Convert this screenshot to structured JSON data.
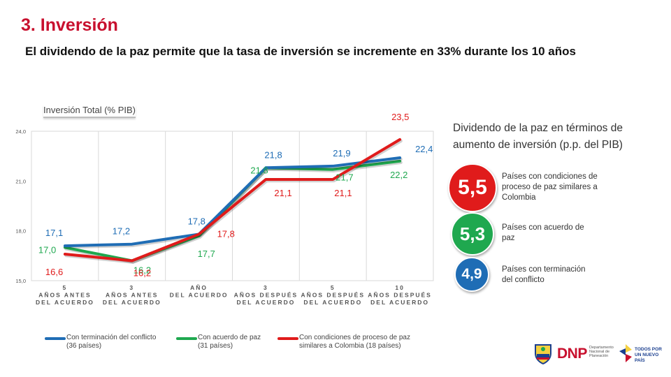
{
  "header": {
    "title": "3. Inversión",
    "subtitle": "El dividendo de la paz permite que la tasa de inversión se incremente en 33% durante los 10 años"
  },
  "chart_label": "Inversión Total (% PIB)",
  "chart_data": {
    "type": "line",
    "categories": [
      [
        "5",
        "AÑOS ANTES",
        "DEL ACUERDO"
      ],
      [
        "3",
        "AÑOS ANTES",
        "DEL ACUERDO"
      ],
      [
        "AÑO",
        "DEL ACUERDO"
      ],
      [
        "3",
        "AÑOS DESPUÉS",
        "DEL ACUERDO"
      ],
      [
        "5",
        "AÑOS DESPUÉS",
        "DEL ACUERDO"
      ],
      [
        "10",
        "AÑOS DESPUÉS",
        "DEL ACUERDO"
      ]
    ],
    "ylim": [
      15.0,
      24.0
    ],
    "yticks": [
      "15,0",
      "18,0",
      "21,0",
      "24,0"
    ],
    "series": [
      {
        "name": "Con terminación del conflicto (36 países)",
        "color": "#1f6db5",
        "values": [
          17.1,
          17.2,
          17.8,
          21.8,
          21.9,
          22.4
        ],
        "labels": [
          "17,1",
          "17,2",
          "17,8",
          "21,8",
          "21,9",
          "22,4"
        ]
      },
      {
        "name": "Con acuerdo de paz (31 países)",
        "color": "#1fa84f",
        "values": [
          17.0,
          16.2,
          17.7,
          21.8,
          21.7,
          22.2
        ],
        "labels": [
          "17,0",
          "16,2",
          "17,7",
          "21,8",
          "21,7",
          "22,2"
        ]
      },
      {
        "name": "Con condiciones de proceso de paz similares a Colombia (18 países)",
        "color": "#e01b1b",
        "values": [
          16.6,
          16.2,
          17.8,
          21.1,
          21.1,
          23.5
        ],
        "labels": [
          "16,6",
          "16,2",
          "17,8",
          "21,1",
          "21,1",
          "23,5"
        ]
      }
    ]
  },
  "legend": [
    {
      "line1": "Con terminación del conflicto",
      "line2": "(36 países)",
      "color": "#1f6db5"
    },
    {
      "line1": "Con acuerdo de paz",
      "line2": "(31 países)",
      "color": "#1fa84f"
    },
    {
      "line1": "Con condiciones de proceso de paz",
      "line2": "similares a Colombia (18 países)",
      "color": "#e01b1b"
    }
  ],
  "dividend": {
    "heading": "Dividendo de la paz en términos de aumento de inversión (p.p. del PIB)",
    "items": [
      {
        "value": "5,5",
        "color": "#e01b1b",
        "desc": "Países con condiciones de proceso de paz similares a Colombia"
      },
      {
        "value": "5,3",
        "color": "#1fa84f",
        "desc": "Países con acuerdo de paz"
      },
      {
        "value": "4,9",
        "color": "#1f6db5",
        "desc": "Países con terminación del conflicto"
      }
    ]
  },
  "logos": {
    "dnp": "DNP",
    "dnp_sub": "Departamento Nacional de Planeación",
    "tpn": "TODOS POR UN NUEVO PAÍS"
  }
}
